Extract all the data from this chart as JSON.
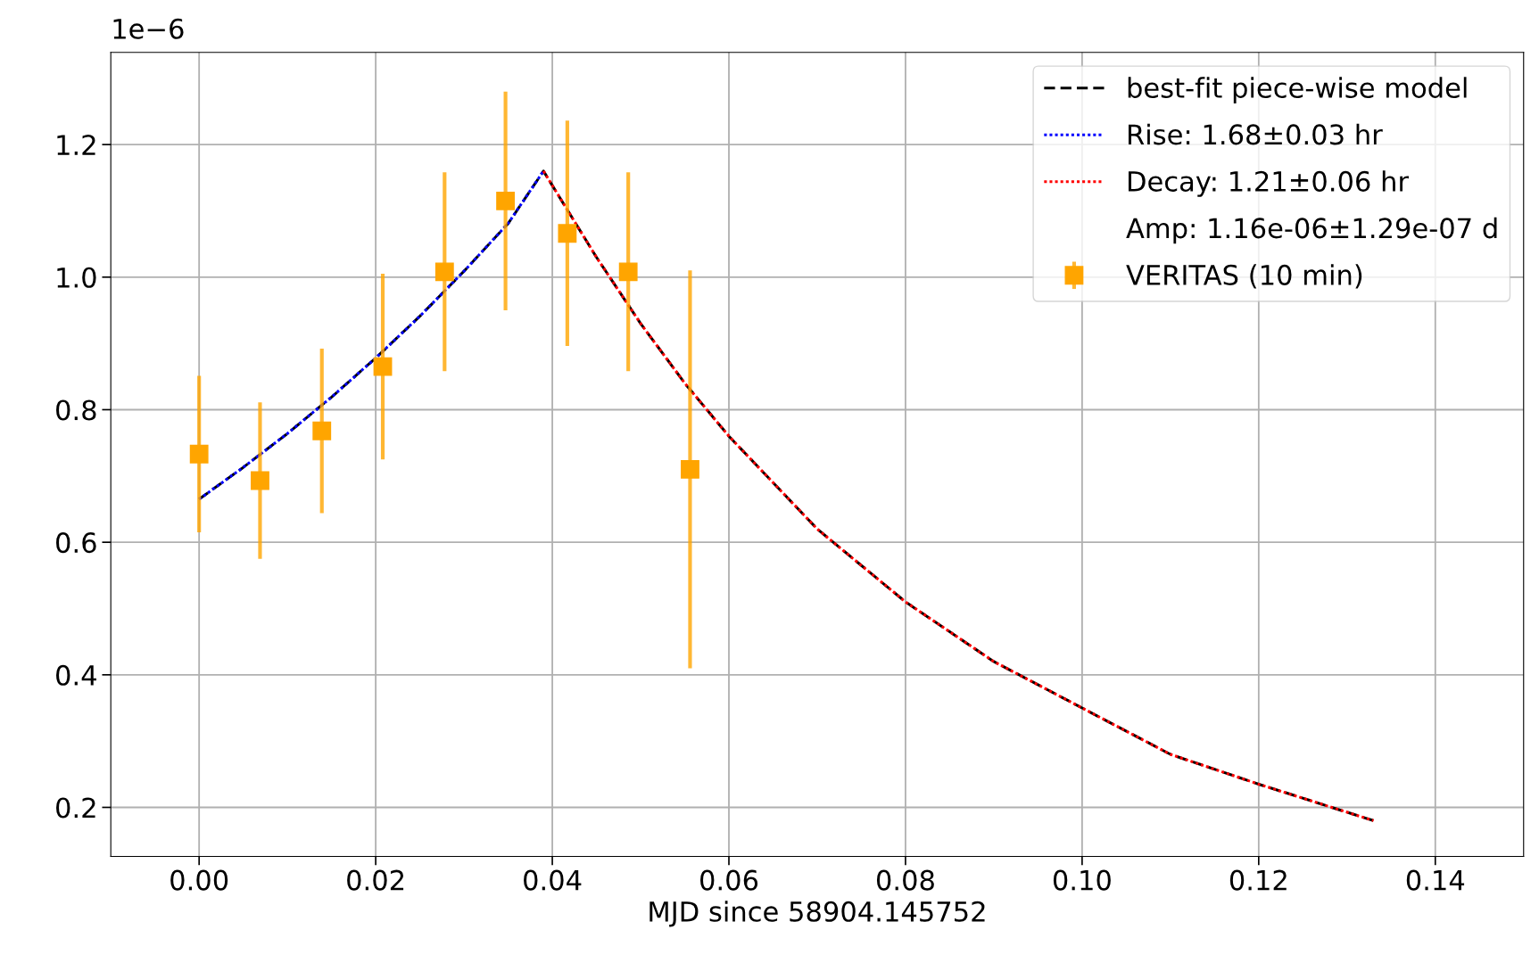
{
  "chart_data": {
    "type": "scatter",
    "xlabel": "MJD since 58904.145752",
    "annotations": [
      "1e−6"
    ],
    "xlim": [
      -0.01,
      0.15
    ],
    "xticks": [
      {
        "value": 0,
        "label": "0.00"
      },
      {
        "value": 0.02,
        "label": "0.02"
      },
      {
        "value": 0.04,
        "label": "0.04"
      },
      {
        "value": 0.06,
        "label": "0.06"
      },
      {
        "value": 0.08,
        "label": "0.08"
      },
      {
        "value": 0.1,
        "label": "0.10"
      },
      {
        "value": 0.12,
        "label": "0.12"
      },
      {
        "value": 0.14,
        "label": "0.14"
      }
    ],
    "ylim": [
      0.126,
      1.339
    ],
    "yticks": [
      0.2,
      0.4,
      0.6,
      0.8,
      {
        "value": 1.0,
        "label": "1.0"
      },
      1.2
    ],
    "grid": true,
    "legend": "top right",
    "series": [
      {
        "name": "best-fit piece-wise model",
        "type": "line",
        "line_style": "dashed",
        "color": "#000000",
        "x": [
          0,
          0.005,
          0.01,
          0.015,
          0.02,
          0.025,
          0.03,
          0.035,
          0.039,
          0.045,
          0.05,
          0.055,
          0.06,
          0.07,
          0.08,
          0.09,
          0.1,
          0.11,
          0.12,
          0.133
        ],
        "values": [
          0.665,
          0.713,
          0.764,
          0.819,
          0.878,
          0.941,
          1.009,
          1.081,
          1.16,
          1.03,
          0.93,
          0.84,
          0.76,
          0.62,
          0.51,
          0.42,
          0.35,
          0.28,
          0.235,
          0.18
        ]
      },
      {
        "name": "Rise: 1.68±0.03 hr",
        "type": "line",
        "line_style": "dotted",
        "color": "#0000ff",
        "x": [
          0,
          0.005,
          0.01,
          0.015,
          0.02,
          0.025,
          0.03,
          0.035,
          0.039
        ],
        "values": [
          0.665,
          0.713,
          0.764,
          0.819,
          0.878,
          0.941,
          1.009,
          1.081,
          1.16
        ]
      },
      {
        "name": "Decay: 1.21±0.06 hr",
        "type": "line",
        "line_style": "dotted",
        "color": "#ff0000",
        "x": [
          0.039,
          0.045,
          0.05,
          0.055,
          0.06,
          0.07,
          0.08,
          0.09,
          0.1,
          0.11,
          0.12,
          0.133
        ],
        "values": [
          1.16,
          1.03,
          0.93,
          0.84,
          0.76,
          0.62,
          0.51,
          0.42,
          0.35,
          0.28,
          0.235,
          0.18
        ]
      },
      {
        "name": "Amp: 1.16e-06±1.29e-07 d",
        "type": "line"
      },
      {
        "name": "VERITAS (10 min)",
        "marker": "square",
        "color": "#ffa500",
        "x": [
          0,
          0.0069,
          0.0139,
          0.0208,
          0.0278,
          0.0347,
          0.0417,
          0.0486,
          0.0556
        ],
        "values": [
          0.733,
          0.693,
          0.768,
          0.865,
          1.008,
          1.115,
          1.066,
          1.008,
          0.71
        ],
        "errors": [
          0.118,
          0.118,
          0.124,
          0.14,
          0.15,
          0.165,
          0.17,
          0.15,
          0.3
        ]
      }
    ]
  }
}
